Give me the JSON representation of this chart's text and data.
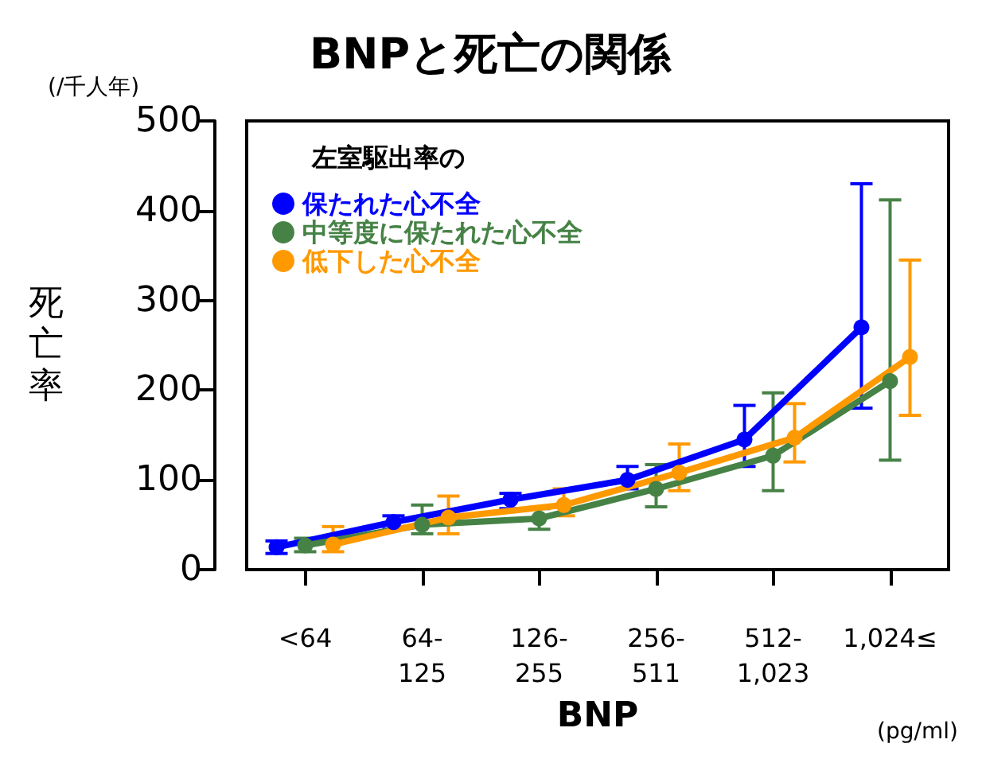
{
  "chart_data": {
    "type": "line",
    "title": "BNPと死亡の関係",
    "xlabel": "BNP",
    "ylabel": "死亡率",
    "legend_title": "左室駆出率の",
    "categories": [
      "<64",
      "64-\n125",
      "126-\n255",
      "256-\n511",
      "512-\n1,023",
      "1,024≤"
    ],
    "series": [
      {
        "name": "保たれた心不全",
        "color": "#0000ff",
        "values": [
          25,
          53,
          78,
          100,
          145,
          270
        ],
        "errors": [
          [
            18,
            32
          ],
          [
            45,
            60
          ],
          [
            68,
            85
          ],
          [
            90,
            115
          ],
          [
            115,
            183
          ],
          [
            180,
            430
          ]
        ]
      },
      {
        "name": "中等度に保たれた心不全",
        "color": "#468246",
        "values": [
          27,
          50,
          57,
          90,
          127,
          210
        ],
        "errors": [
          [
            20,
            35
          ],
          [
            40,
            72
          ],
          [
            45,
            68
          ],
          [
            70,
            117
          ],
          [
            88,
            197
          ],
          [
            122,
            412
          ]
        ]
      },
      {
        "name": "低下した心不全",
        "color": "#ff9900",
        "values": [
          28,
          58,
          72,
          108,
          147,
          237
        ],
        "errors": [
          [
            20,
            48
          ],
          [
            40,
            82
          ],
          [
            60,
            90
          ],
          [
            88,
            140
          ],
          [
            120,
            185
          ],
          [
            172,
            345
          ]
        ]
      }
    ],
    "ylim": [
      0,
      500
    ],
    "yticks": [
      0,
      100,
      200,
      300,
      400,
      500
    ],
    "grid": false,
    "legend": "top left",
    "marker": "circle",
    "line_style": "solid",
    "annotations": [
      "(/千人年)",
      "(pg/ml)"
    ]
  }
}
